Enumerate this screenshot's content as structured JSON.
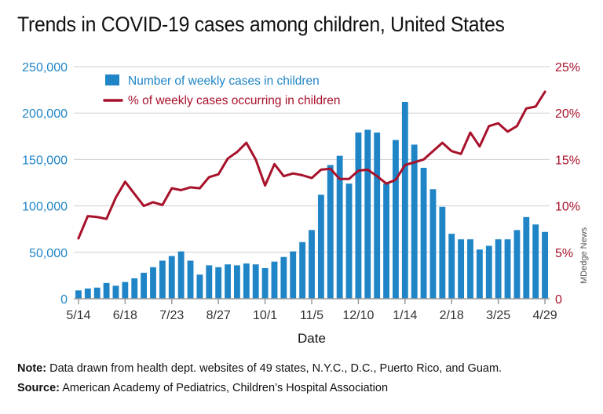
{
  "title": "Trends in COVID-19 cases among children, United States",
  "note": {
    "label": "Note:",
    "text": " Data drawn from health dept. websites of 49 states, N.Y.C., D.C., Puerto Rico, and Guam."
  },
  "source": {
    "label": "Source:",
    "text": " American Academy of Pediatrics, Children’s Hospital Association"
  },
  "credit": "MDedge News",
  "colors": {
    "bars": "#1f85c7",
    "line": "#a8112a",
    "text": "#111111",
    "axis": "#9a9a9a"
  },
  "chart_data": {
    "type": "bar+line",
    "xlabel": "Date",
    "x_tick_labels": [
      "5/14",
      "6/18",
      "7/23",
      "8/27",
      "10/1",
      "11/5",
      "12/10",
      "1/14",
      "2/18",
      "3/25",
      "4/29"
    ],
    "x_tick_positions": [
      0,
      5,
      10,
      15,
      20,
      25,
      30,
      35,
      40,
      45,
      50
    ],
    "y_left": {
      "min": 0,
      "max": 250000,
      "ticks": [
        "0",
        "50,000",
        "100,000",
        "150,000",
        "200,000",
        "250,000"
      ]
    },
    "y_right": {
      "min": 0,
      "max": 25,
      "ticks": [
        "0",
        "5%",
        "10%",
        "15%",
        "20%",
        "25%"
      ]
    },
    "grid": true,
    "legend_position": "top-left",
    "series": [
      {
        "name": "Number of weekly cases in children",
        "type": "bar",
        "axis": "left",
        "values": [
          9000,
          11000,
          12000,
          17000,
          14000,
          18000,
          22000,
          28000,
          34000,
          41000,
          46000,
          51000,
          41000,
          26000,
          36000,
          34000,
          37000,
          36000,
          38000,
          37000,
          33000,
          40000,
          45000,
          51000,
          61000,
          74000,
          112000,
          144000,
          154000,
          124000,
          179000,
          182000,
          179000,
          124000,
          171000,
          212000,
          166000,
          141000,
          118000,
          99000,
          70000,
          64000,
          64000,
          53000,
          57000,
          64000,
          64000,
          74000,
          88000,
          80000,
          72000
        ]
      },
      {
        "name": "% of weekly cases occurring in children",
        "type": "line",
        "axis": "right",
        "values": [
          6.5,
          8.9,
          8.8,
          8.6,
          10.9,
          12.6,
          11.3,
          10.0,
          10.4,
          10.1,
          11.9,
          11.7,
          12.0,
          11.9,
          13.1,
          13.4,
          15.1,
          15.8,
          16.8,
          15.0,
          12.2,
          14.5,
          13.2,
          13.5,
          13.3,
          13.0,
          13.9,
          14.0,
          12.9,
          12.9,
          13.8,
          13.9,
          13.2,
          12.4,
          12.8,
          14.4,
          14.7,
          15.0,
          15.9,
          16.8,
          15.9,
          15.6,
          17.9,
          16.4,
          18.6,
          18.9,
          18.0,
          18.6,
          20.5,
          20.7,
          22.3
        ]
      }
    ]
  }
}
